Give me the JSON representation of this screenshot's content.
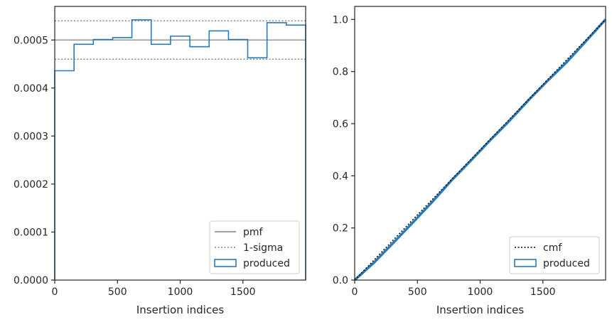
{
  "chart_data": [
    {
      "type": "step-histogram",
      "xlabel": "Insertion indices",
      "ylabel": "",
      "xlim": [
        0,
        2000
      ],
      "ylim": [
        0,
        0.00057
      ],
      "xticks": [
        0,
        500,
        1000,
        1500
      ],
      "xtick_labels": [
        "0",
        "500",
        "1000",
        "1500"
      ],
      "yticks": [
        0,
        0.0001,
        0.0002,
        0.0003,
        0.0004,
        0.0005
      ],
      "ytick_labels": [
        "0.0000",
        "0.0001",
        "0.0002",
        "0.0003",
        "0.0004",
        "0.0005"
      ],
      "pmf": 0.0005,
      "sigma_band": [
        0.00046,
        0.00054
      ],
      "bin_edges": [
        0,
        154,
        308,
        462,
        615,
        769,
        923,
        1077,
        1231,
        1385,
        1538,
        1692,
        1846,
        2000
      ],
      "series": [
        {
          "name": "produced",
          "color": "#2a7ab5",
          "values": [
            0.000436,
            0.000491,
            0.000501,
            0.000505,
            0.000542,
            0.000491,
            0.000508,
            0.000486,
            0.000519,
            0.000501,
            0.000463,
            0.000536,
            0.000531
          ]
        }
      ],
      "legend": {
        "placement": "lower right",
        "entries": [
          {
            "label": "pmf",
            "style": "solid",
            "color": "#808080"
          },
          {
            "label": "1-sigma",
            "style": "dotted",
            "color": "#808080"
          },
          {
            "label": "produced",
            "style": "patch",
            "color": "#2a7ab5"
          }
        ]
      },
      "grid": false
    },
    {
      "type": "line",
      "xlabel": "Insertion indices",
      "ylabel": "",
      "xlim": [
        0,
        2000
      ],
      "ylim": [
        0,
        1.05
      ],
      "xticks": [
        0,
        500,
        1000,
        1500
      ],
      "xtick_labels": [
        "0",
        "500",
        "1000",
        "1500"
      ],
      "yticks": [
        0,
        0.2,
        0.4,
        0.6,
        0.8,
        1.0
      ],
      "ytick_labels": [
        "0.0",
        "0.2",
        "0.4",
        "0.6",
        "0.8",
        "1.0"
      ],
      "series": [
        {
          "name": "cmf",
          "style": "dotted",
          "color": "#000000",
          "x": [
            0,
            2000
          ],
          "y": [
            0,
            1.0
          ]
        },
        {
          "name": "produced",
          "style": "solid",
          "color": "#2a7ab5",
          "x": [
            0,
            154,
            308,
            462,
            615,
            769,
            923,
            1077,
            1231,
            1385,
            1538,
            1692,
            1846,
            2000
          ],
          "y": [
            0,
            0.067,
            0.143,
            0.22,
            0.298,
            0.381,
            0.457,
            0.535,
            0.61,
            0.69,
            0.765,
            0.837,
            0.918,
            1.0
          ]
        }
      ],
      "legend": {
        "placement": "lower right",
        "entries": [
          {
            "label": "cmf",
            "style": "dotted",
            "color": "#000000"
          },
          {
            "label": "produced",
            "style": "patch",
            "color": "#2a7ab5"
          }
        ]
      },
      "grid": false
    }
  ]
}
